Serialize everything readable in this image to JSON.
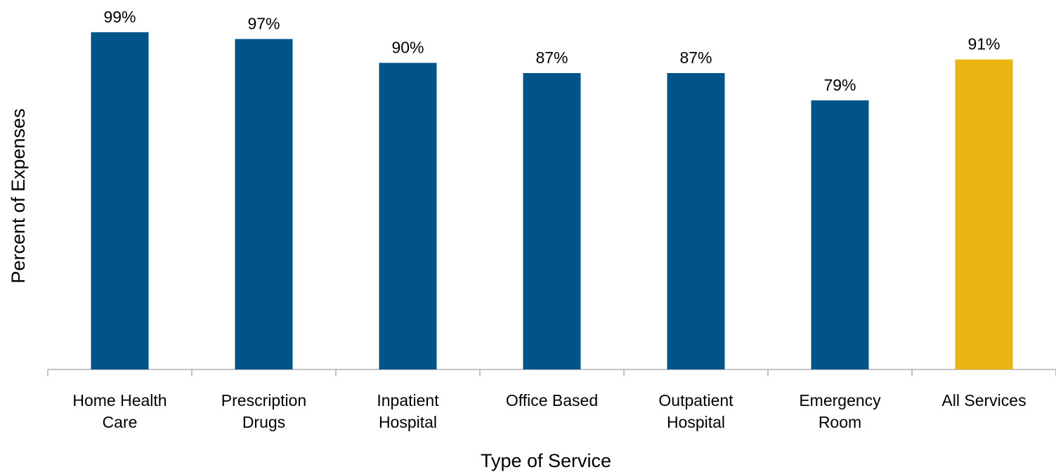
{
  "chart_data": {
    "type": "bar",
    "x_label": "Type of Service",
    "y_label": "Percent of Expenses",
    "categories": [
      "Home Health\nCare",
      "Prescription\nDrugs",
      "Inpatient\nHospital",
      "Office Based",
      "Outpatient\nHospital",
      "Emergency\nRoom",
      "All Services"
    ],
    "values": [
      99,
      97,
      90,
      87,
      87,
      79,
      91
    ],
    "value_labels": [
      "99%",
      "97%",
      "90%",
      "87%",
      "87%",
      "79%",
      "91%"
    ],
    "colors": [
      "#00548a",
      "#00548a",
      "#00548a",
      "#00548a",
      "#00548a",
      "#00548a",
      "#e9b513"
    ],
    "ylim": [
      0,
      100
    ]
  }
}
